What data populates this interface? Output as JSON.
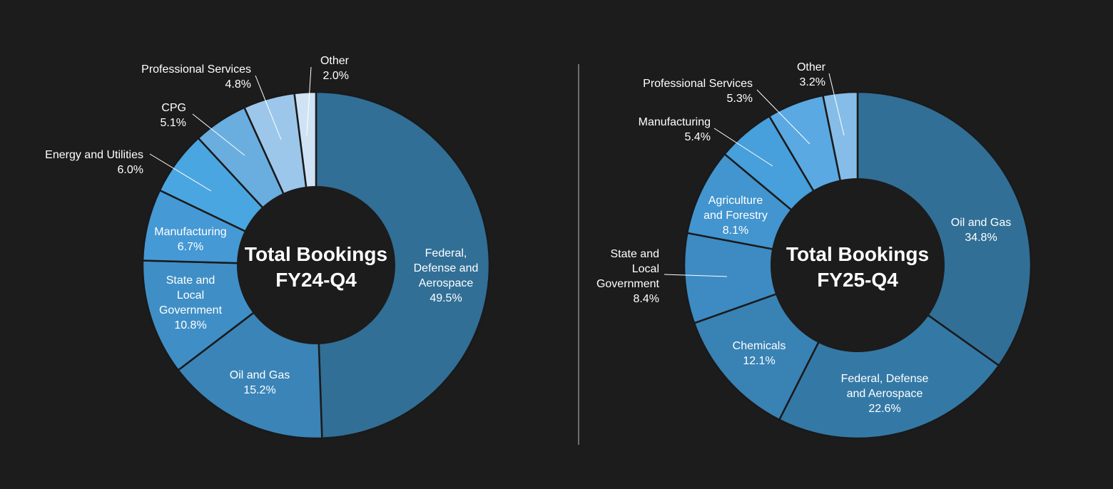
{
  "colors": {
    "background": "#1c1c1c",
    "divider": "#8a8a8a",
    "slice_stroke": "#1a1a1a",
    "hole": "#1c1c1c",
    "label": "#ffffff"
  },
  "chart_data": [
    {
      "type": "pie",
      "center_label": [
        "Total Bookings",
        "FY24-Q4"
      ],
      "slices": [
        {
          "label": "Federal, Defense and Aerospace",
          "display_lines": [
            "Federal,",
            "Defense and",
            "Aerospace",
            "49.5%"
          ],
          "value": 49.5,
          "pct_text": "49.5%",
          "color": "#316f96"
        },
        {
          "label": "Oil and Gas",
          "display_lines": [
            "Oil and Gas",
            "15.2%"
          ],
          "value": 15.2,
          "pct_text": "15.2%",
          "color": "#3a84b8"
        },
        {
          "label": "State and Local Government",
          "display_lines": [
            "State and",
            "Local",
            "Government",
            "10.8%"
          ],
          "value": 10.8,
          "pct_text": "10.8%",
          "color": "#3f8fc6"
        },
        {
          "label": "Manufacturing",
          "display_lines": [
            "Manufacturing",
            "6.7%"
          ],
          "value": 6.7,
          "pct_text": "6.7%",
          "color": "#4599d5"
        },
        {
          "label": "Energy and Utilities",
          "display_lines": [
            "Energy and Utilities",
            "6.0%"
          ],
          "value": 6.0,
          "pct_text": "6.0%",
          "color": "#4aa6e0"
        },
        {
          "label": "CPG",
          "display_lines": [
            "CPG",
            "5.1%"
          ],
          "value": 5.1,
          "pct_text": "5.1%",
          "color": "#6aaedf"
        },
        {
          "label": "Professional Services",
          "display_lines": [
            "Professional Services",
            "4.8%"
          ],
          "value": 4.8,
          "pct_text": "4.8%",
          "color": "#9cc7ea"
        },
        {
          "label": "Other",
          "display_lines": [
            "Other",
            "2.0%"
          ],
          "value": 2.0,
          "pct_text": "2.0%",
          "color": "#cfe3f4"
        }
      ]
    },
    {
      "type": "pie",
      "center_label": [
        "Total Bookings",
        "FY25-Q4"
      ],
      "slices": [
        {
          "label": "Oil and Gas",
          "display_lines": [
            "Oil and Gas",
            "34.8%"
          ],
          "value": 34.8,
          "pct_text": "34.8%",
          "color": "#316f96"
        },
        {
          "label": "Federal, Defense and Aerospace",
          "display_lines": [
            "Federal, Defense",
            "and Aerospace",
            "22.6%"
          ],
          "value": 22.6,
          "pct_text": "22.6%",
          "color": "#3479a6"
        },
        {
          "label": "Chemicals",
          "display_lines": [
            "Chemicals",
            "12.1%"
          ],
          "value": 12.1,
          "pct_text": "12.1%",
          "color": "#3982b4"
        },
        {
          "label": "State and Local Government",
          "display_lines": [
            "State and",
            "Local",
            "Government",
            "8.4%"
          ],
          "value": 8.4,
          "pct_text": "8.4%",
          "color": "#3d8bc2"
        },
        {
          "label": "Agriculture and Forestry",
          "display_lines": [
            "Agriculture",
            "and Forestry",
            "8.1%"
          ],
          "value": 8.1,
          "pct_text": "8.1%",
          "color": "#4295cf"
        },
        {
          "label": "Manufacturing",
          "display_lines": [
            "Manufacturing",
            "5.4%"
          ],
          "value": 5.4,
          "pct_text": "5.4%",
          "color": "#479fdb"
        },
        {
          "label": "Professional Services",
          "display_lines": [
            "Professional Services",
            "5.3%"
          ],
          "value": 5.3,
          "pct_text": "5.3%",
          "color": "#5aa9e2"
        },
        {
          "label": "Other",
          "display_lines": [
            "Other",
            "3.2%"
          ],
          "value": 3.2,
          "pct_text": "3.2%",
          "color": "#86bde8"
        }
      ]
    }
  ]
}
